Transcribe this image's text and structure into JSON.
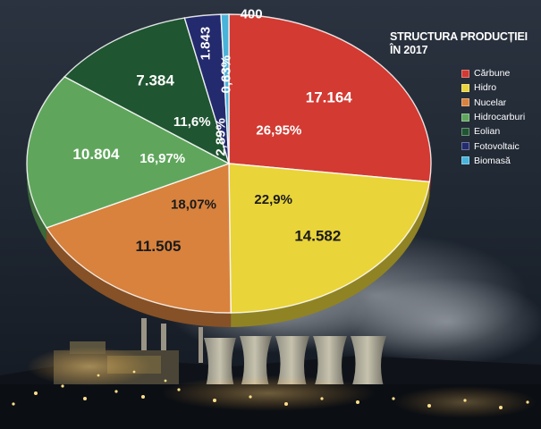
{
  "chart_data": {
    "type": "pie",
    "title": "STRUCTURA PRODUCȚIEI",
    "subtitle": "ÎN 2017",
    "legend_position": "top-right",
    "series": [
      {
        "name": "Cărbune",
        "value": 17164,
        "value_label": "17.164",
        "percent_label": "26,95%",
        "color": "#d23a32"
      },
      {
        "name": "Hidro",
        "value": 14582,
        "value_label": "14.582",
        "percent_label": "22,9%",
        "color": "#e9d43a"
      },
      {
        "name": "Nucelar",
        "value": 11505,
        "value_label": "11.505",
        "percent_label": "18,07%",
        "color": "#d8823e"
      },
      {
        "name": "Hidrocarburi",
        "value": 10804,
        "value_label": "10.804",
        "percent_label": "16,97%",
        "color": "#5fa65c"
      },
      {
        "name": "Eolian",
        "value": 7384,
        "value_label": "7.384",
        "percent_label": "11,6%",
        "color": "#1f5530"
      },
      {
        "name": "Fotovoltaic",
        "value": 1843,
        "value_label": "1.843",
        "percent_label": "2,89%",
        "color": "#232a6d"
      },
      {
        "name": "Biomasă",
        "value": 400,
        "value_label": "400",
        "percent_label": "0,63%",
        "color": "#49b3da"
      }
    ]
  }
}
